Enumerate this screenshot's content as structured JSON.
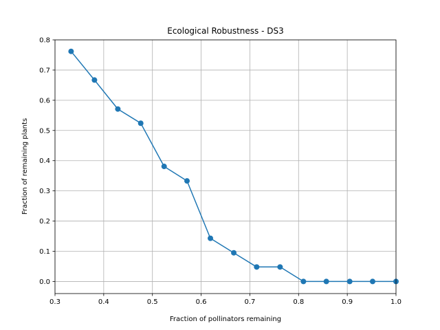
{
  "chart_data": {
    "type": "line",
    "title": "Ecological Robustness - DS3",
    "xlabel": "Fraction of pollinators remaining",
    "ylabel": "Fraction of remaining plants",
    "xlim": [
      0.3,
      1.0
    ],
    "ylim": [
      -0.04,
      0.8
    ],
    "grid": true,
    "x_ticks": [
      0.3,
      0.4,
      0.5,
      0.6,
      0.7,
      0.8,
      0.9,
      1.0
    ],
    "x_tick_labels": [
      "0.3",
      "0.4",
      "0.5",
      "0.6",
      "0.7",
      "0.8",
      "0.9",
      "1.0"
    ],
    "y_ticks": [
      0.0,
      0.1,
      0.2,
      0.3,
      0.4,
      0.5,
      0.6,
      0.7,
      0.8
    ],
    "y_tick_labels": [
      "0.0",
      "0.1",
      "0.2",
      "0.3",
      "0.4",
      "0.5",
      "0.6",
      "0.7",
      "0.8"
    ],
    "series": [
      {
        "color": "#1f77b4",
        "marker": "circle",
        "x": [
          0.333,
          0.381,
          0.429,
          0.476,
          0.524,
          0.571,
          0.619,
          0.667,
          0.714,
          0.762,
          0.81,
          0.857,
          0.905,
          0.952,
          1.0
        ],
        "y": [
          0.762,
          0.667,
          0.571,
          0.524,
          0.381,
          0.333,
          0.143,
          0.095,
          0.048,
          0.048,
          0.0,
          0.0,
          0.0,
          0.0,
          0.0
        ]
      }
    ]
  }
}
